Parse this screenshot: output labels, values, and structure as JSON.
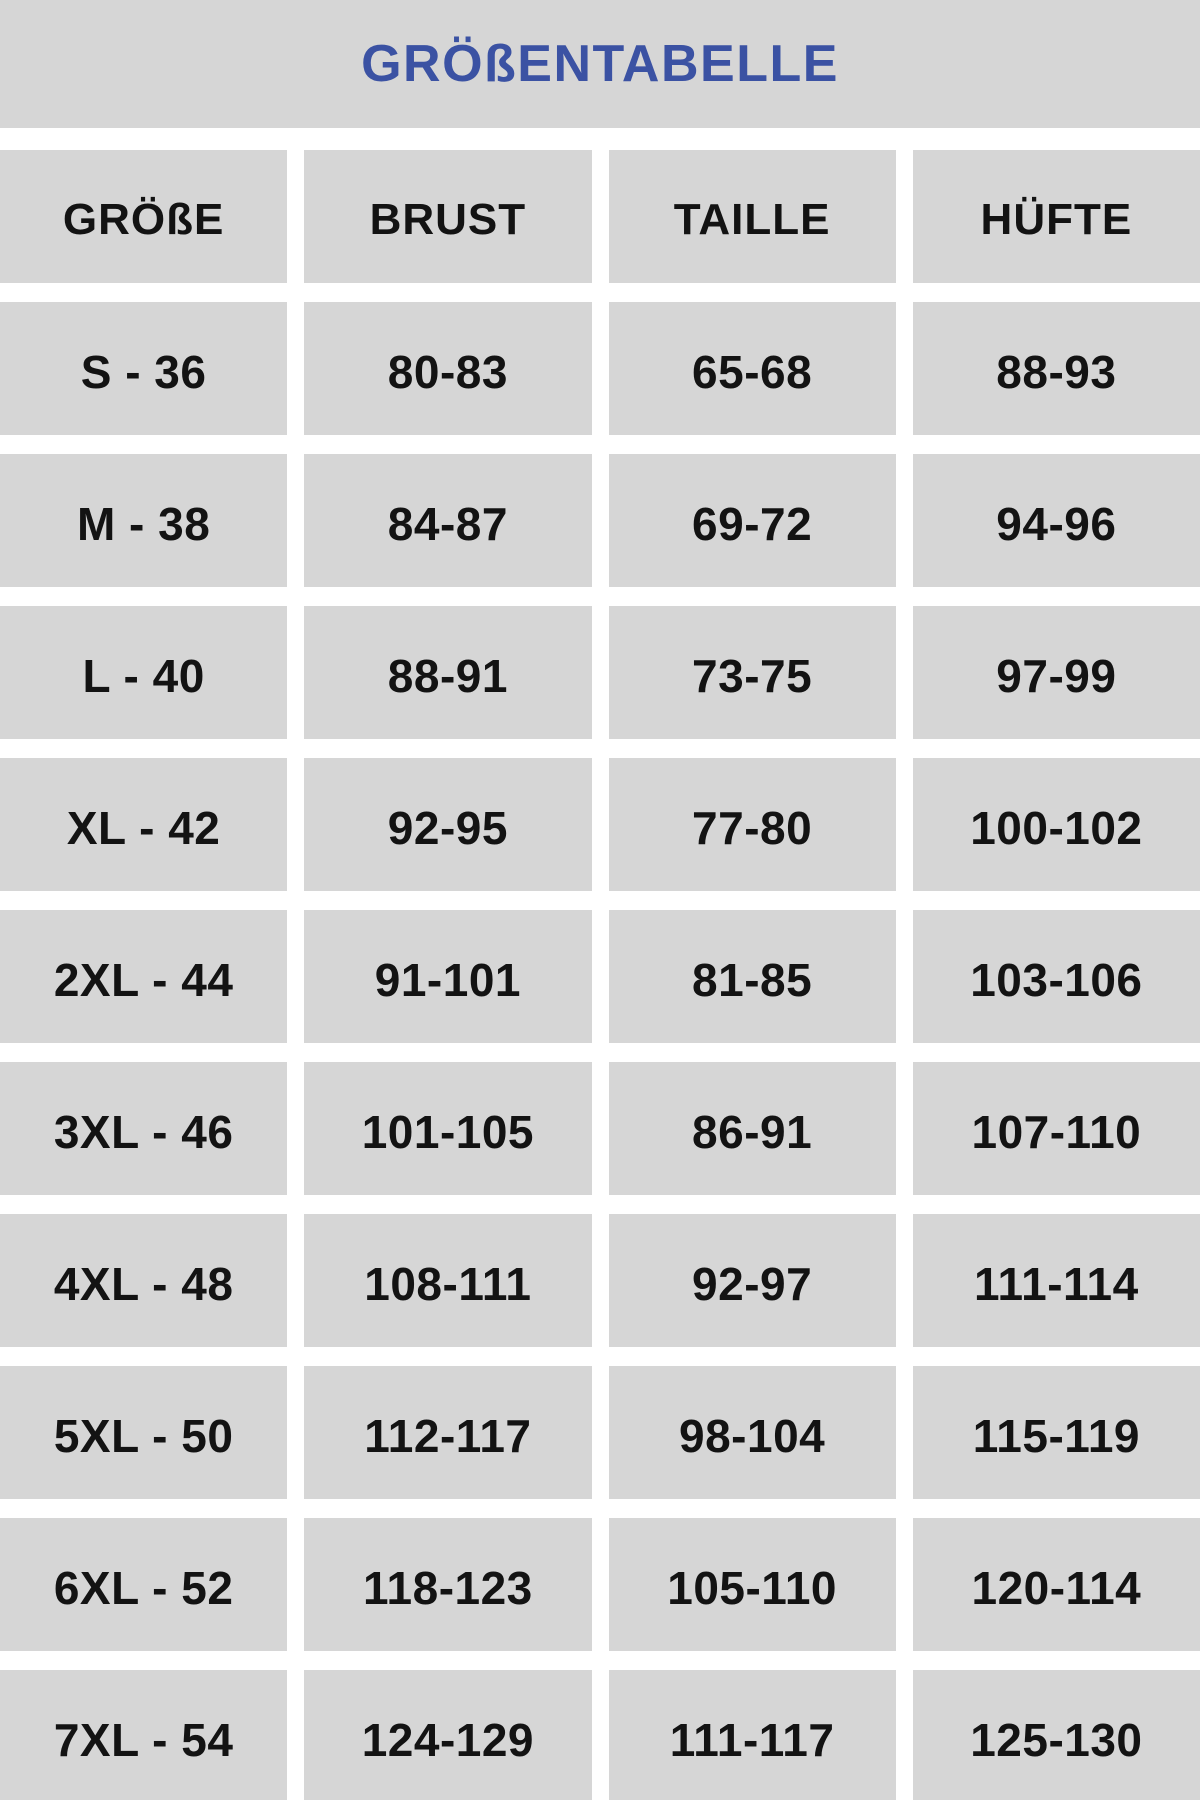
{
  "title": "GRÖßENTABELLE",
  "colors": {
    "accent_blue": "#3b52a3",
    "cell_gray": "#d6d6d6",
    "text_black": "#131313",
    "background_white": "#ffffff"
  },
  "chart_data": {
    "type": "table",
    "title": "GRÖßENTABELLE",
    "columns": [
      "GRÖßE",
      "BRUST",
      "TAILLE",
      "HÜFTE"
    ],
    "rows": [
      [
        "S - 36",
        "80-83",
        "65-68",
        "88-93"
      ],
      [
        "M - 38",
        "84-87",
        "69-72",
        "94-96"
      ],
      [
        "L - 40",
        "88-91",
        "73-75",
        "97-99"
      ],
      [
        "XL - 42",
        "92-95",
        "77-80",
        "100-102"
      ],
      [
        "2XL - 44",
        "91-101",
        "81-85",
        "103-106"
      ],
      [
        "3XL - 46",
        "101-105",
        "86-91",
        "107-110"
      ],
      [
        "4XL - 48",
        "108-111",
        "92-97",
        "111-114"
      ],
      [
        "5XL - 50",
        "112-117",
        "98-104",
        "115-119"
      ],
      [
        "6XL - 52",
        "118-123",
        "105-110",
        "120-114"
      ],
      [
        "7XL - 54",
        "124-129",
        "111-117",
        "125-130"
      ]
    ],
    "layout": {
      "legend": "none",
      "grid": "off",
      "note": "gray cells on white background, 4 columns, header row + 10 size rows, last row clipped at bottom edge"
    }
  }
}
